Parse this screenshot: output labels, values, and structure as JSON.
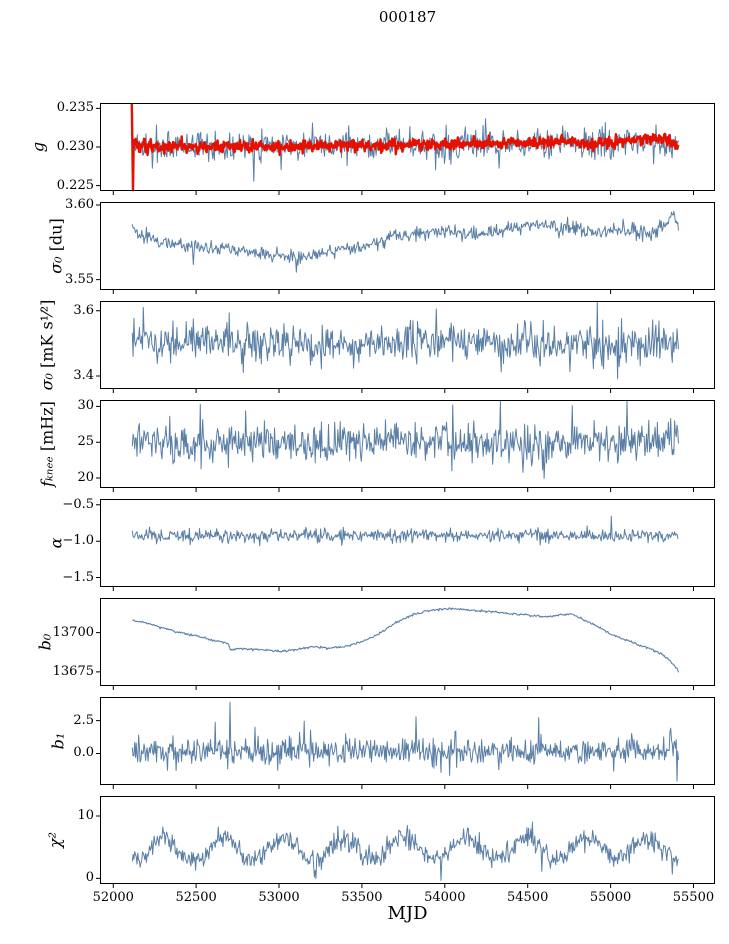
{
  "chart_data": {
    "type": "line",
    "title": "000187",
    "xlabel": "MJD",
    "xlim": [
      51920,
      55630
    ],
    "x_ticks": [
      52000,
      52500,
      53000,
      53500,
      54000,
      54500,
      55000,
      55500
    ],
    "x_tick_labels": [
      "52000",
      "52500",
      "53000",
      "53500",
      "54000",
      "54500",
      "55000",
      "55500"
    ],
    "legend": "none",
    "grid": false,
    "panels": [
      {
        "id": "g",
        "ylabel_var": "g",
        "ylabel_unit": "",
        "ylim": [
          0.2243,
          0.2357
        ],
        "yticks": [
          0.235,
          0.23,
          0.225
        ],
        "ytick_labels": [
          "0.235",
          "0.230",
          "0.225"
        ],
        "series": [
          {
            "name": "g-daily",
            "color": "#5a7fa6",
            "width": 1,
            "n": 680,
            "seed": 7,
            "noise": 0.0009,
            "tail_prob": 0.07,
            "tail_mag": 0.0016,
            "tail_bias": -0.3,
            "anchors": [
              [
                52115,
                0.2302
              ],
              [
                52300,
                0.2301
              ],
              [
                52700,
                0.2302
              ],
              [
                53200,
                0.2302
              ],
              [
                53800,
                0.2303
              ],
              [
                54300,
                0.2305
              ],
              [
                54700,
                0.2304
              ],
              [
                55000,
                0.2305
              ],
              [
                55200,
                0.2307
              ],
              [
                55330,
                0.2306
              ],
              [
                55410,
                0.2307
              ]
            ]
          },
          {
            "name": "g-smoothed",
            "color": "#e51000",
            "width": 2.4,
            "n": 900,
            "seed": 8,
            "noise": 0.00038,
            "anchors": [
              [
                52112,
                0.2356
              ],
              [
                52116,
                0.23
              ],
              [
                52120,
                0.2244
              ],
              [
                52124,
                0.233
              ],
              [
                52128,
                0.2288
              ],
              [
                52133,
                0.2312
              ],
              [
                52140,
                0.2296
              ],
              [
                52152,
                0.2305
              ],
              [
                52166,
                0.2298
              ],
              [
                52185,
                0.2306
              ],
              [
                52210,
                0.2297
              ],
              [
                52240,
                0.2303
              ],
              [
                52280,
                0.2299
              ],
              [
                52350,
                0.2302
              ],
              [
                52500,
                0.23
              ],
              [
                52700,
                0.2301
              ],
              [
                53000,
                0.23
              ],
              [
                53300,
                0.2302
              ],
              [
                53600,
                0.2302
              ],
              [
                53900,
                0.2304
              ],
              [
                54200,
                0.2304
              ],
              [
                54500,
                0.2306
              ],
              [
                54700,
                0.2306
              ],
              [
                54900,
                0.2305
              ],
              [
                55050,
                0.2306
              ],
              [
                55150,
                0.2309
              ],
              [
                55250,
                0.2312
              ],
              [
                55320,
                0.2313
              ],
              [
                55360,
                0.2306
              ],
              [
                55410,
                0.2301
              ]
            ],
            "spikes": [
              {
                "x": 52113,
                "y": 0.2356
              },
              {
                "x": 52120,
                "y": 0.2244
              }
            ]
          }
        ]
      },
      {
        "id": "sigma0-du",
        "ylabel_var": "σ₀",
        "ylabel_unit": " [du]",
        "ylim": [
          3.543,
          3.602
        ],
        "yticks": [
          3.6,
          3.55
        ],
        "ytick_labels": [
          "3.60",
          "3.55"
        ],
        "series": [
          {
            "name": "sigma0-du",
            "color": "#5a7fa6",
            "width": 1,
            "n": 700,
            "seed": 21,
            "noise": 0.0024,
            "tail_prob": 0.04,
            "tail_mag": 0.004,
            "tail_bias": -0.5,
            "anchors": [
              [
                52115,
                3.59
              ],
              [
                52130,
                3.583
              ],
              [
                52200,
                3.578
              ],
              [
                52300,
                3.575
              ],
              [
                52450,
                3.573
              ],
              [
                52600,
                3.571
              ],
              [
                52750,
                3.57
              ],
              [
                52900,
                3.567
              ],
              [
                53000,
                3.566
              ],
              [
                53100,
                3.565
              ],
              [
                53200,
                3.567
              ],
              [
                53300,
                3.568
              ],
              [
                53400,
                3.57
              ],
              [
                53500,
                3.572
              ],
              [
                53600,
                3.575
              ],
              [
                53700,
                3.58
              ],
              [
                53800,
                3.582
              ],
              [
                53900,
                3.582
              ],
              [
                54000,
                3.583
              ],
              [
                54100,
                3.581
              ],
              [
                54200,
                3.58
              ],
              [
                54300,
                3.582
              ],
              [
                54400,
                3.584
              ],
              [
                54500,
                3.586
              ],
              [
                54600,
                3.587
              ],
              [
                54700,
                3.586
              ],
              [
                54800,
                3.585
              ],
              [
                54860,
                3.58
              ],
              [
                54950,
                3.582
              ],
              [
                55050,
                3.584
              ],
              [
                55150,
                3.582
              ],
              [
                55250,
                3.581
              ],
              [
                55330,
                3.59
              ],
              [
                55380,
                3.592
              ],
              [
                55410,
                3.584
              ]
            ]
          }
        ]
      },
      {
        "id": "sigma0-mk",
        "ylabel_var": "σ₀",
        "ylabel_unit": " [mK s¹⁄²]",
        "ylim": [
          3.36,
          3.63
        ],
        "yticks": [
          3.6,
          3.4
        ],
        "ytick_labels": [
          "3.6",
          "3.4"
        ],
        "series": [
          {
            "name": "sigma0-mk",
            "color": "#5a7fa6",
            "width": 1,
            "n": 700,
            "seed": 31,
            "noise": 0.028,
            "tail_prob": 0.05,
            "tail_mag": 0.05,
            "anchors": [
              [
                52115,
                3.52
              ],
              [
                52300,
                3.5
              ],
              [
                52600,
                3.51
              ],
              [
                53000,
                3.495
              ],
              [
                53500,
                3.5
              ],
              [
                54000,
                3.505
              ],
              [
                54500,
                3.5
              ],
              [
                55000,
                3.495
              ],
              [
                55250,
                3.5
              ],
              [
                55410,
                3.5
              ]
            ]
          }
        ]
      },
      {
        "id": "fknee",
        "ylabel_var": "fₖₙₑₑ",
        "ylabel_unit": " [mHz]",
        "ylim": [
          18.6,
          30.9
        ],
        "yticks": [
          30,
          25,
          20
        ],
        "ytick_labels": [
          "30",
          "25",
          "20"
        ],
        "series": [
          {
            "name": "fknee",
            "color": "#5a7fa6",
            "width": 1,
            "n": 700,
            "seed": 41,
            "noise": 1.35,
            "tail_prob": 0.08,
            "tail_mag": 2.4,
            "anchors": [
              [
                52115,
                25.2
              ],
              [
                52400,
                24.8
              ],
              [
                52800,
                25.0
              ],
              [
                53200,
                24.6
              ],
              [
                53600,
                25.0
              ],
              [
                54000,
                25.2
              ],
              [
                54400,
                24.8
              ],
              [
                54800,
                25.0
              ],
              [
                55200,
                24.9
              ],
              [
                55410,
                25.4
              ]
            ]
          }
        ]
      },
      {
        "id": "alpha",
        "ylabel_var": "α",
        "ylabel_unit": "",
        "ylim": [
          -1.63,
          -0.42
        ],
        "yticks": [
          -0.5,
          -1.0,
          -1.5
        ],
        "ytick_labels": [
          "−0.5",
          "−1.0",
          "−1.5"
        ],
        "series": [
          {
            "name": "alpha",
            "color": "#5a7fa6",
            "width": 1,
            "n": 700,
            "seed": 51,
            "noise": 0.042,
            "tail_prob": 0.05,
            "tail_mag": 0.07,
            "anchors": [
              [
                52115,
                -0.93
              ],
              [
                53000,
                -0.92
              ],
              [
                54000,
                -0.92
              ],
              [
                55000,
                -0.93
              ],
              [
                55410,
                -0.92
              ]
            ]
          }
        ]
      },
      {
        "id": "b0",
        "ylabel_var": "b₀",
        "ylabel_unit": "",
        "ylim": [
          13666,
          13722
        ],
        "yticks": [
          13700,
          13675
        ],
        "ytick_labels": [
          "13700",
          "13675"
        ],
        "series": [
          {
            "name": "b0",
            "color": "#5a7fa6",
            "width": 1.1,
            "n": 650,
            "seed": 61,
            "noise": 0.35,
            "anchors": [
              [
                52115,
                13708
              ],
              [
                52200,
                13706
              ],
              [
                52300,
                13703
              ],
              [
                52400,
                13700
              ],
              [
                52500,
                13698
              ],
              [
                52600,
                13695
              ],
              [
                52660,
                13694
              ],
              [
                52695,
                13693
              ],
              [
                52705,
                13689
              ],
              [
                52760,
                13690
              ],
              [
                52900,
                13689
              ],
              [
                53000,
                13688
              ],
              [
                53100,
                13689
              ],
              [
                53200,
                13691
              ],
              [
                53300,
                13690
              ],
              [
                53400,
                13691
              ],
              [
                53500,
                13694
              ],
              [
                53600,
                13699
              ],
              [
                53700,
                13706
              ],
              [
                53800,
                13711
              ],
              [
                53900,
                13714
              ],
              [
                54000,
                13715
              ],
              [
                54100,
                13715
              ],
              [
                54200,
                13714
              ],
              [
                54300,
                13713
              ],
              [
                54400,
                13712
              ],
              [
                54500,
                13711
              ],
              [
                54600,
                13710
              ],
              [
                54700,
                13711
              ],
              [
                54760,
                13712
              ],
              [
                54820,
                13709
              ],
              [
                54880,
                13706
              ],
              [
                54940,
                13703
              ],
              [
                55000,
                13699
              ],
              [
                55100,
                13695
              ],
              [
                55200,
                13691
              ],
              [
                55300,
                13687
              ],
              [
                55350,
                13683
              ],
              [
                55400,
                13677
              ],
              [
                55410,
                13675
              ]
            ]
          }
        ]
      },
      {
        "id": "b1",
        "ylabel_var": "b₁",
        "ylabel_unit": "",
        "ylim": [
          -2.4,
          4.3
        ],
        "yticks": [
          2.5,
          0.0
        ],
        "ytick_labels": [
          "2.5",
          "0.0"
        ],
        "series": [
          {
            "name": "b1",
            "color": "#5a7fa6",
            "width": 1,
            "n": 700,
            "seed": 71,
            "noise": 0.5,
            "tail_prob": 0.05,
            "tail_mag": 0.9,
            "anchors": [
              [
                52115,
                0.25
              ],
              [
                52500,
                0.2
              ],
              [
                53000,
                0.2
              ],
              [
                53500,
                0.15
              ],
              [
                54000,
                0.2
              ],
              [
                54500,
                0.2
              ],
              [
                55000,
                0.2
              ],
              [
                55410,
                0.2
              ]
            ],
            "spikes": [
              {
                "x": 52705,
                "y": 3.9
              },
              {
                "x": 55400,
                "y": -2.1
              }
            ]
          }
        ]
      },
      {
        "id": "chi2",
        "ylabel_var": "χ²",
        "ylabel_unit": "",
        "ylim": [
          -0.9,
          13.2
        ],
        "yticks": [
          10,
          0
        ],
        "ytick_labels": [
          "10",
          "0"
        ],
        "series": [
          {
            "name": "chi2",
            "color": "#5a7fa6",
            "width": 1,
            "n": 700,
            "seed": 81,
            "noise": 0.85,
            "tail_prob": 0.04,
            "tail_mag": 1.5,
            "osc": {
              "amp": 1.7,
              "period": 365,
              "x0": 52210
            },
            "anchors": [
              [
                52115,
                4.6
              ],
              [
                53000,
                4.7
              ],
              [
                54000,
                4.8
              ],
              [
                55000,
                4.7
              ],
              [
                55410,
                4.8
              ]
            ]
          }
        ]
      }
    ]
  }
}
